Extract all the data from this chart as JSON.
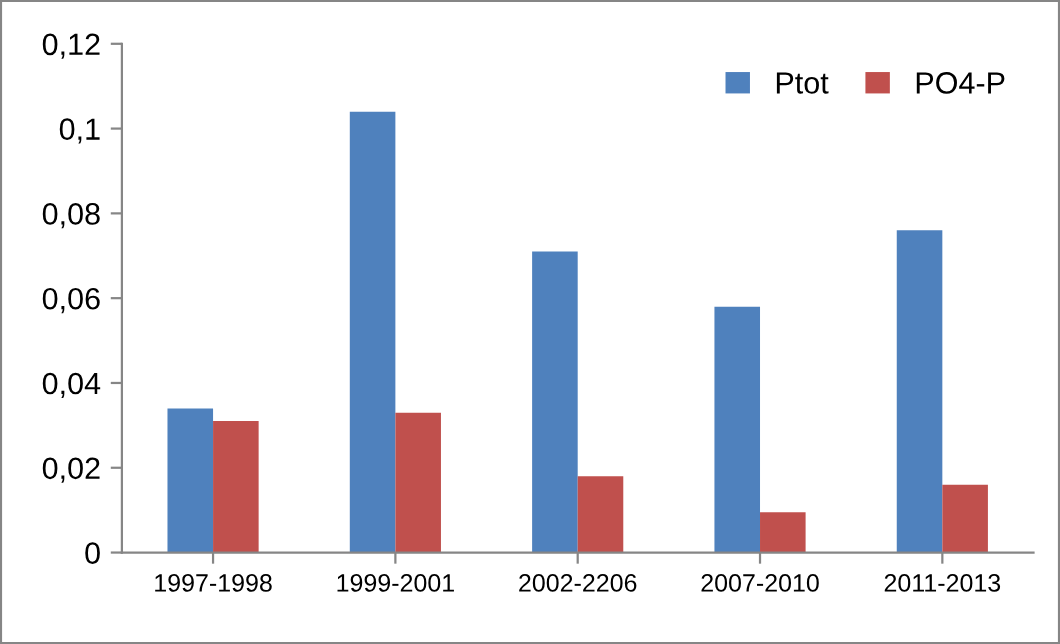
{
  "chart_data": {
    "type": "bar",
    "categories": [
      "1997-1998",
      "1999-2001",
      "2002-2206",
      "2007-2010",
      "2011-2013"
    ],
    "series": [
      {
        "name": "Ptot",
        "color": "#4f81bd",
        "values": [
          0.034,
          0.104,
          0.071,
          0.058,
          0.076
        ]
      },
      {
        "name": "PO4-P",
        "color": "#c0504d",
        "values": [
          0.031,
          0.033,
          0.018,
          0.0095,
          0.016
        ]
      }
    ],
    "ylim": [
      0,
      0.12
    ],
    "yticks": [
      0,
      {
        "value": 0.02,
        "label": "0,02"
      },
      {
        "value": 0.04,
        "label": "0,04"
      },
      {
        "value": 0.06,
        "label": "0,06"
      },
      {
        "value": 0.08,
        "label": "0,08"
      },
      {
        "value": 0.1,
        "label": "0,1"
      },
      {
        "value": 0.12,
        "label": "0,12"
      }
    ],
    "grid": false,
    "legend": "top right"
  }
}
